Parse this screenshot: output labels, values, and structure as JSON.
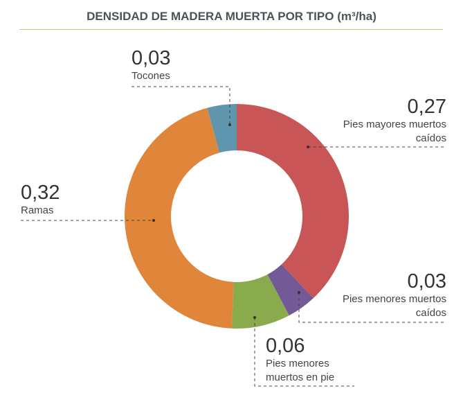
{
  "chart_data": {
    "type": "donut",
    "title": "DENSIDAD DE MADERA MUERTA POR TIPO (m³/ha)",
    "categories": [
      "Pies mayores muertos caídos",
      "Pies menores muertos caídos",
      "Pies menores muertos en pie",
      "Ramas",
      "Tocones"
    ],
    "values": [
      0.27,
      0.03,
      0.06,
      0.32,
      0.03
    ],
    "value_labels": [
      "0,27",
      "0,03",
      "0,06",
      "0,32",
      "0,03"
    ],
    "colors": [
      "#c85656",
      "#735a96",
      "#8aaa4e",
      "#e0863b",
      "#5f95ad"
    ]
  }
}
